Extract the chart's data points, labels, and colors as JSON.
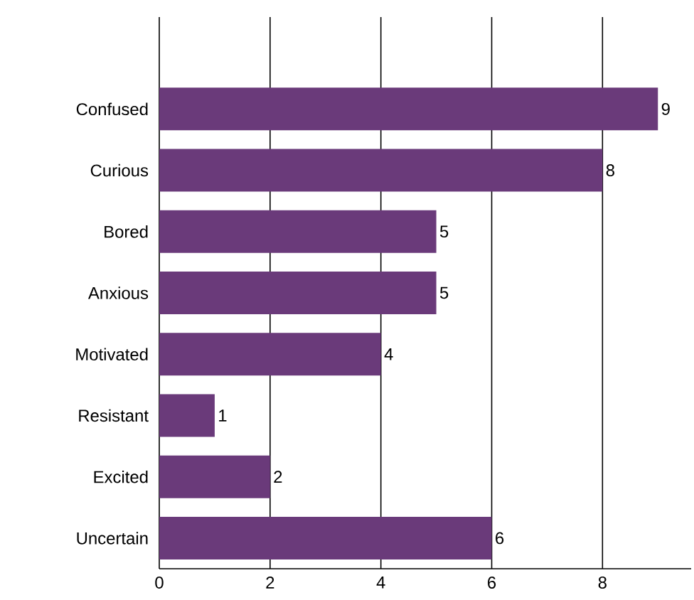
{
  "chart_data": {
    "type": "bar",
    "orientation": "horizontal",
    "categories": [
      "Confused",
      "Curious",
      "Bored",
      "Anxious",
      "Motivated",
      "Resistant",
      "Excited",
      "Uncertain"
    ],
    "values": [
      9,
      8,
      5,
      5,
      4,
      1,
      2,
      6
    ],
    "color": "#6a3a7a",
    "xlim": [
      0,
      9.6
    ],
    "xticks": [
      0,
      2,
      4,
      6,
      8
    ],
    "grid": "x",
    "data_labels": true
  }
}
